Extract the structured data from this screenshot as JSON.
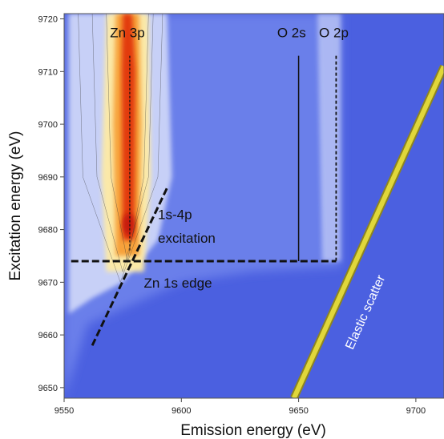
{
  "chart_data": {
    "type": "heatmap",
    "xlabel": "Emission energy (eV)",
    "ylabel": "Excitation energy (eV)",
    "xlim": [
      9550,
      9712
    ],
    "ylim": [
      9648,
      9721
    ],
    "x_ticks": [
      9550,
      9600,
      9650,
      9700
    ],
    "y_ticks": [
      9650,
      9660,
      9670,
      9680,
      9690,
      9700,
      9710,
      9720
    ],
    "x_tick_labels": [
      "9550",
      "9600",
      "9650",
      "9700"
    ],
    "y_tick_labels": [
      "9650",
      "9660",
      "9670",
      "9680",
      "9690",
      "9700",
      "9710",
      "9720"
    ],
    "colors": {
      "background": "#4b60e0",
      "low": "#6b7fea",
      "mid": "#c7d0f7",
      "high": "#e23a10",
      "peak_yellow": "#f5e35a",
      "scatter_line": "#e0d73a"
    },
    "features": {
      "zn3p_center_x": 9578,
      "o2s_x": 9650,
      "o2p_x": 9666,
      "zn_edge_y": 9674,
      "elastic_scatter": [
        [
          9648,
          9648
        ],
        [
          9712,
          9711
        ]
      ]
    },
    "annotations": [
      {
        "id": "zn3p",
        "text": "Zn 3p",
        "x": 9577,
        "y": 9716.5
      },
      {
        "id": "o2s",
        "text": "O 2s",
        "x": 9647,
        "y": 9716.5
      },
      {
        "id": "o2p",
        "text": "O 2p",
        "x": 9665,
        "y": 9716.5
      },
      {
        "id": "excitation-1",
        "text": "1s-4p",
        "x": 9590,
        "y": 9682
      },
      {
        "id": "excitation-2",
        "text": "excitation",
        "x": 9590,
        "y": 9677.5
      },
      {
        "id": "edge",
        "text": "Zn 1s edge",
        "x": 9584,
        "y": 9669
      },
      {
        "id": "scatter",
        "text": "Elastic scatter",
        "x": 9680,
        "y": 9664
      }
    ]
  }
}
